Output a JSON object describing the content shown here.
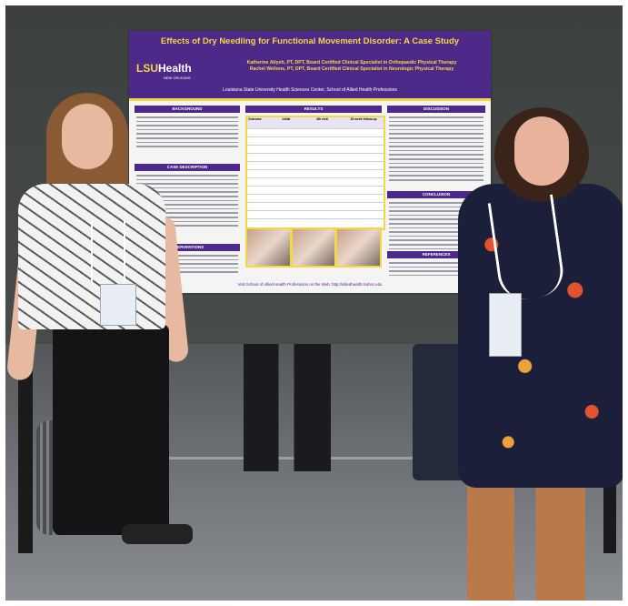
{
  "poster": {
    "title": "Effects of Dry Needling for Functional Movement Disorder: A Case Study",
    "logo_main": "LSU",
    "logo_accent": "Health",
    "logo_sub": "NEW ORLEANS",
    "author1": "Katherine Atiyeh, PT, DPT, Board Certified Clinical Specialist in Orthopaedic Physical Therapy",
    "author2": "Rachel Wellons, PT, DPT, Board Certified Clinical Specialist in Neurologic Physical Therapy",
    "institution": "Louisiana State University Health Sciences Center, School of Allied Health Professions",
    "sections": {
      "background": "BACKGROUND",
      "case_description": "CASE DESCRIPTION",
      "interventions": "INTERVENTIONS",
      "results": "RESULTS",
      "discussion": "DISCUSSION",
      "conclusion": "CONCLUSION",
      "references": "REFERENCES"
    },
    "table_headers": [
      "Outcome",
      "Initial",
      "4th visit",
      "25 week follow-up"
    ],
    "footer": "Visit School of Allied Health Professions on the Web: http://alliedhealth.lsuhsc.edu"
  },
  "colors": {
    "lsu_purple": "#4d2a8a",
    "lsu_gold": "#f4d742"
  }
}
